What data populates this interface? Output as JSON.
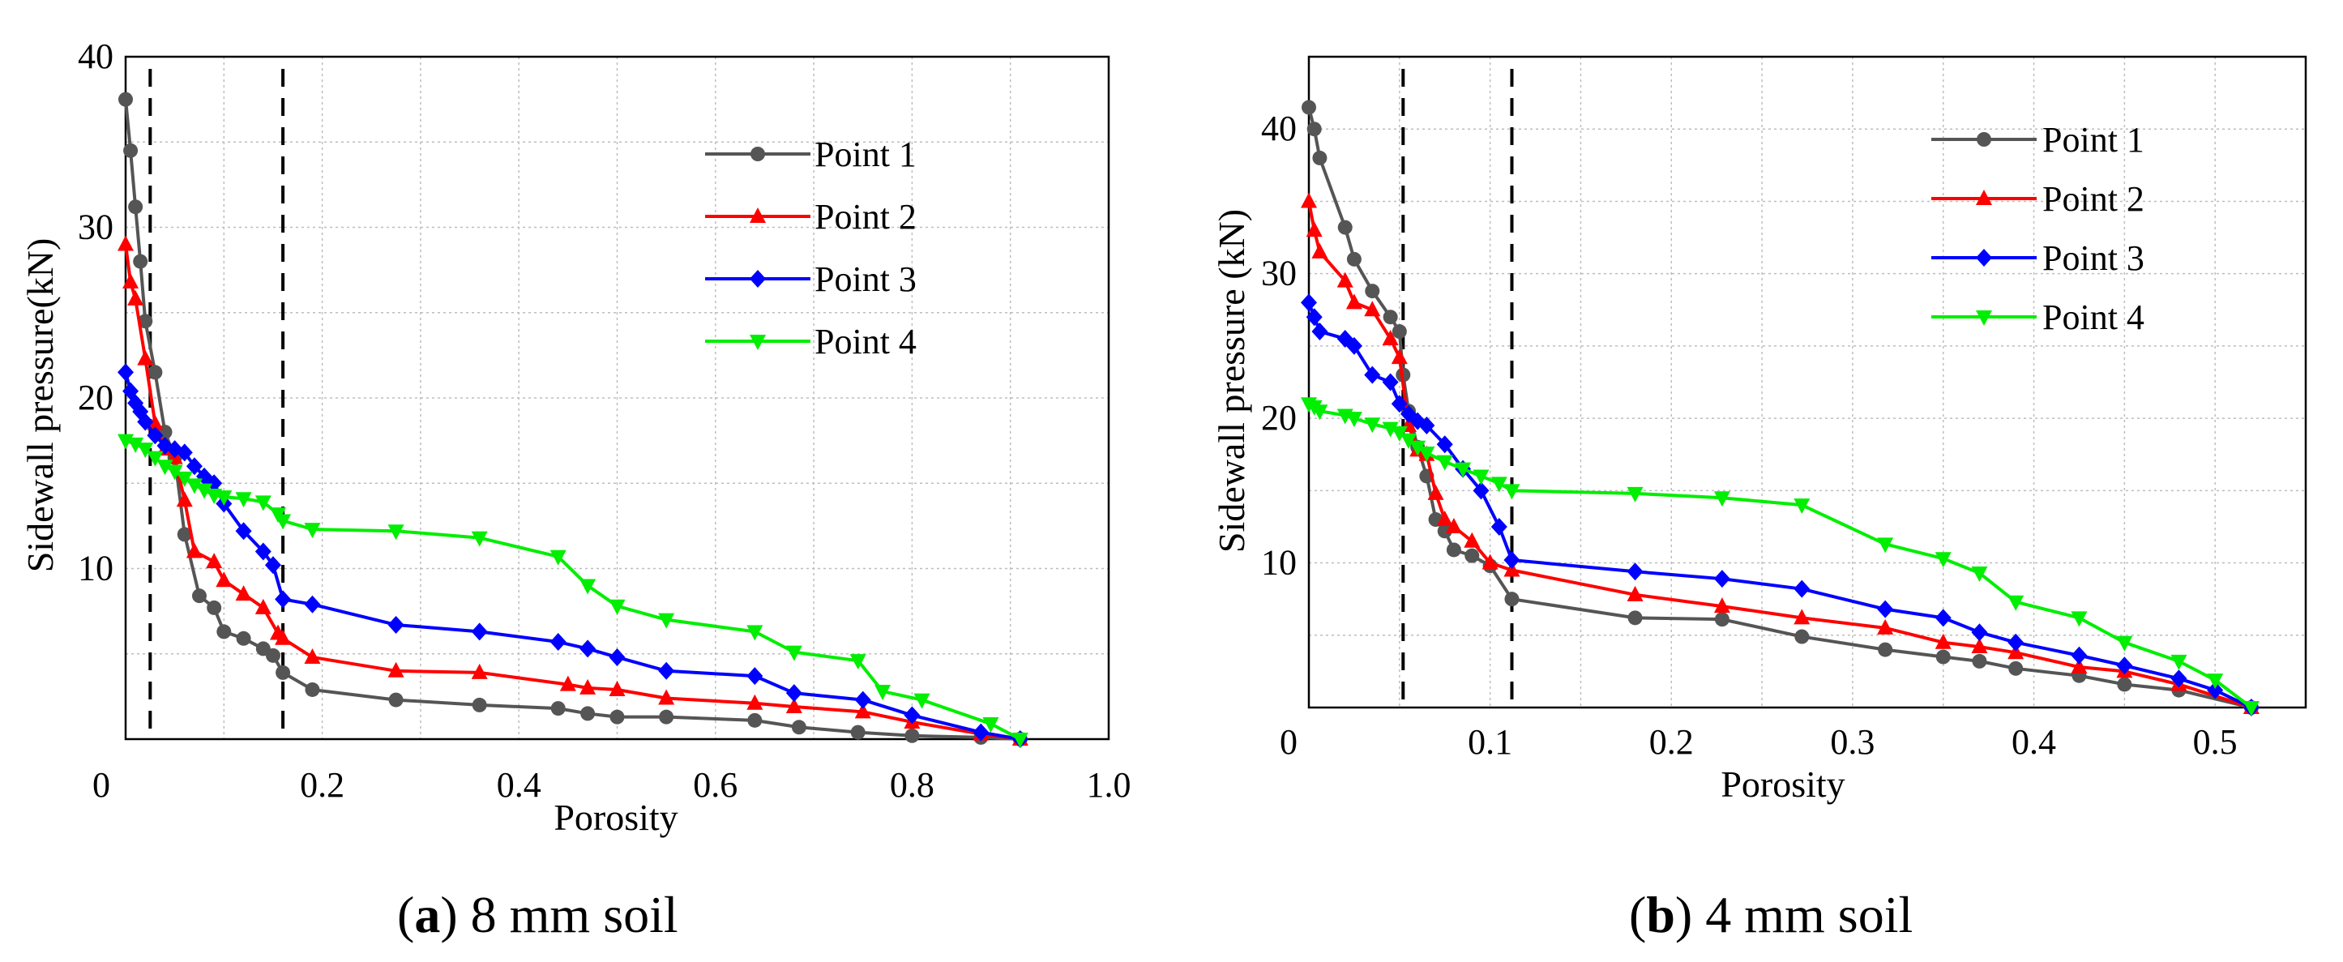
{
  "chart_data": [
    {
      "type": "line",
      "panel_id": "a",
      "caption_letter": "a",
      "caption_text": " 8 mm soil",
      "xlabel": "Porosity",
      "ylabel": "Sidewall pressure(kN)",
      "xlim": [
        0,
        1.0
      ],
      "ylim": [
        0,
        40
      ],
      "x_ticks": [
        {
          "v": 0,
          "label": "0"
        },
        {
          "v": 0.2,
          "label": "0.2"
        },
        {
          "v": 0.4,
          "label": "0.4"
        },
        {
          "v": 0.6,
          "label": "0.6"
        },
        {
          "v": 0.8,
          "label": "0.8"
        },
        {
          "v": 1.0,
          "label": "1.0"
        }
      ],
      "y_ticks": [
        {
          "v": 10,
          "label": "10"
        },
        {
          "v": 20,
          "label": "20"
        },
        {
          "v": 30,
          "label": "30"
        },
        {
          "v": 40,
          "label": "40"
        }
      ],
      "origin_label": "0",
      "grid": true,
      "legend_position": "top-right",
      "dashed_lines_x": [
        0.025,
        0.16
      ],
      "series": [
        {
          "name": "Point 1",
          "color": "#555555",
          "marker": "circle",
          "x": [
            0.0,
            0.005,
            0.01,
            0.015,
            0.02,
            0.03,
            0.04,
            0.05,
            0.06,
            0.075,
            0.09,
            0.1,
            0.12,
            0.14,
            0.15,
            0.16,
            0.19,
            0.275,
            0.36,
            0.44,
            0.47,
            0.5,
            0.55,
            0.64,
            0.685,
            0.745,
            0.8,
            0.87,
            0.91
          ],
          "y": [
            37.5,
            34.5,
            31.2,
            28.0,
            24.5,
            21.5,
            18.0,
            16.5,
            12.0,
            8.4,
            7.7,
            6.3,
            5.9,
            5.3,
            4.9,
            3.9,
            2.9,
            2.3,
            2.0,
            1.8,
            1.5,
            1.3,
            1.3,
            1.1,
            0.7,
            0.4,
            0.2,
            0.1,
            0.0
          ]
        },
        {
          "name": "Point 2",
          "color": "#ff0000",
          "marker": "triangle-up",
          "x": [
            0.0,
            0.005,
            0.01,
            0.02,
            0.03,
            0.04,
            0.05,
            0.06,
            0.07,
            0.09,
            0.1,
            0.12,
            0.14,
            0.155,
            0.16,
            0.19,
            0.275,
            0.36,
            0.45,
            0.47,
            0.5,
            0.55,
            0.64,
            0.68,
            0.75,
            0.8,
            0.87,
            0.91
          ],
          "y": [
            29.0,
            26.8,
            25.8,
            22.3,
            18.5,
            17.0,
            16.5,
            14.0,
            11.0,
            10.4,
            9.3,
            8.5,
            7.7,
            6.2,
            5.9,
            4.8,
            4.0,
            3.9,
            3.2,
            3.0,
            2.9,
            2.4,
            2.1,
            1.9,
            1.6,
            1.0,
            0.3,
            0.0
          ]
        },
        {
          "name": "Point 3",
          "color": "#0000ff",
          "marker": "diamond",
          "x": [
            0.0,
            0.005,
            0.01,
            0.015,
            0.02,
            0.03,
            0.04,
            0.05,
            0.06,
            0.07,
            0.08,
            0.09,
            0.1,
            0.12,
            0.14,
            0.15,
            0.16,
            0.19,
            0.275,
            0.36,
            0.44,
            0.47,
            0.5,
            0.55,
            0.64,
            0.68,
            0.75,
            0.8,
            0.87,
            0.91
          ],
          "y": [
            21.5,
            20.4,
            19.7,
            19.2,
            18.6,
            17.8,
            17.2,
            17.0,
            16.8,
            16.0,
            15.4,
            15.0,
            13.8,
            12.2,
            11.0,
            10.2,
            8.2,
            7.9,
            6.7,
            6.3,
            5.7,
            5.3,
            4.8,
            4.0,
            3.7,
            2.7,
            2.3,
            1.4,
            0.4,
            0.0
          ]
        },
        {
          "name": "Point 4",
          "color": "#00ee00",
          "marker": "triangle-down",
          "x": [
            0.0,
            0.01,
            0.02,
            0.03,
            0.04,
            0.05,
            0.06,
            0.07,
            0.08,
            0.09,
            0.1,
            0.12,
            0.14,
            0.155,
            0.16,
            0.19,
            0.275,
            0.36,
            0.44,
            0.47,
            0.5,
            0.55,
            0.64,
            0.68,
            0.745,
            0.77,
            0.81,
            0.88,
            0.91
          ],
          "y": [
            17.5,
            17.3,
            17.0,
            16.5,
            16.0,
            15.7,
            15.3,
            14.9,
            14.6,
            14.3,
            14.2,
            14.1,
            13.9,
            13.2,
            12.8,
            12.3,
            12.2,
            11.8,
            10.7,
            9.0,
            7.8,
            7.0,
            6.3,
            5.1,
            4.6,
            2.8,
            2.3,
            0.9,
            0.0
          ]
        }
      ]
    },
    {
      "type": "line",
      "panel_id": "b",
      "caption_letter": "b",
      "caption_text": " 4 mm soil",
      "xlabel": "Porosity",
      "ylabel": "Sidewall pressure (kN)",
      "xlim": [
        0,
        0.55
      ],
      "ylim": [
        0,
        45
      ],
      "x_ticks": [
        {
          "v": 0.1,
          "label": "0.1"
        },
        {
          "v": 0.2,
          "label": "0.2"
        },
        {
          "v": 0.3,
          "label": "0.3"
        },
        {
          "v": 0.4,
          "label": "0.4"
        },
        {
          "v": 0.5,
          "label": "0.5"
        }
      ],
      "y_ticks": [
        {
          "v": 10,
          "label": "10"
        },
        {
          "v": 20,
          "label": "20"
        },
        {
          "v": 30,
          "label": "30"
        },
        {
          "v": 40,
          "label": "40"
        }
      ],
      "origin_label": "0",
      "grid": true,
      "legend_position": "top-right",
      "dashed_lines_x": [
        0.052,
        0.112
      ],
      "series": [
        {
          "name": "Point 1",
          "color": "#555555",
          "marker": "circle",
          "x": [
            0.0,
            0.003,
            0.006,
            0.02,
            0.025,
            0.035,
            0.045,
            0.05,
            0.052,
            0.055,
            0.06,
            0.065,
            0.07,
            0.075,
            0.08,
            0.09,
            0.1,
            0.112,
            0.18,
            0.228,
            0.272,
            0.318,
            0.35,
            0.37,
            0.39,
            0.425,
            0.45,
            0.48,
            0.52
          ],
          "y": [
            41.5,
            40.0,
            38.0,
            33.2,
            31.0,
            28.8,
            27.0,
            26.0,
            23.0,
            20.5,
            18.0,
            16.0,
            13.0,
            12.2,
            10.9,
            10.5,
            9.8,
            7.5,
            6.2,
            6.1,
            4.9,
            4.0,
            3.5,
            3.2,
            2.7,
            2.2,
            1.6,
            1.2,
            0.0
          ]
        },
        {
          "name": "Point 2",
          "color": "#ff0000",
          "marker": "triangle-up",
          "x": [
            0.0,
            0.003,
            0.006,
            0.02,
            0.025,
            0.035,
            0.045,
            0.05,
            0.055,
            0.06,
            0.065,
            0.07,
            0.075,
            0.08,
            0.09,
            0.1,
            0.112,
            0.18,
            0.228,
            0.272,
            0.318,
            0.35,
            0.37,
            0.39,
            0.425,
            0.45,
            0.48,
            0.52
          ],
          "y": [
            35.0,
            33.0,
            31.5,
            29.5,
            28.0,
            27.5,
            25.5,
            24.2,
            19.5,
            17.8,
            17.5,
            14.8,
            13.0,
            12.5,
            11.5,
            10.0,
            9.5,
            7.8,
            7.0,
            6.2,
            5.5,
            4.5,
            4.2,
            3.8,
            2.8,
            2.5,
            1.6,
            0.0
          ]
        },
        {
          "name": "Point 3",
          "color": "#0000ff",
          "marker": "diamond",
          "x": [
            0.0,
            0.003,
            0.006,
            0.02,
            0.025,
            0.035,
            0.045,
            0.05,
            0.055,
            0.06,
            0.065,
            0.075,
            0.085,
            0.095,
            0.105,
            0.112,
            0.18,
            0.228,
            0.272,
            0.318,
            0.35,
            0.37,
            0.39,
            0.425,
            0.45,
            0.48,
            0.5,
            0.52
          ],
          "y": [
            28.0,
            27.0,
            26.0,
            25.5,
            25.0,
            23.0,
            22.5,
            21.0,
            20.3,
            19.8,
            19.5,
            18.2,
            16.5,
            15.0,
            12.5,
            10.2,
            9.4,
            8.9,
            8.2,
            6.8,
            6.2,
            5.2,
            4.5,
            3.6,
            2.9,
            2.0,
            1.2,
            0.0
          ]
        },
        {
          "name": "Point 4",
          "color": "#00ee00",
          "marker": "triangle-down",
          "x": [
            0.0,
            0.003,
            0.006,
            0.02,
            0.025,
            0.035,
            0.045,
            0.05,
            0.055,
            0.06,
            0.065,
            0.075,
            0.085,
            0.095,
            0.105,
            0.112,
            0.18,
            0.228,
            0.272,
            0.318,
            0.35,
            0.37,
            0.39,
            0.425,
            0.45,
            0.48,
            0.5,
            0.52
          ],
          "y": [
            21.0,
            20.8,
            20.5,
            20.2,
            20.0,
            19.6,
            19.3,
            19.0,
            18.5,
            18.0,
            17.6,
            17.0,
            16.5,
            16.0,
            15.5,
            15.0,
            14.8,
            14.5,
            14.0,
            11.3,
            10.3,
            9.3,
            7.3,
            6.2,
            4.5,
            3.2,
            1.9,
            0.0
          ]
        }
      ]
    }
  ]
}
